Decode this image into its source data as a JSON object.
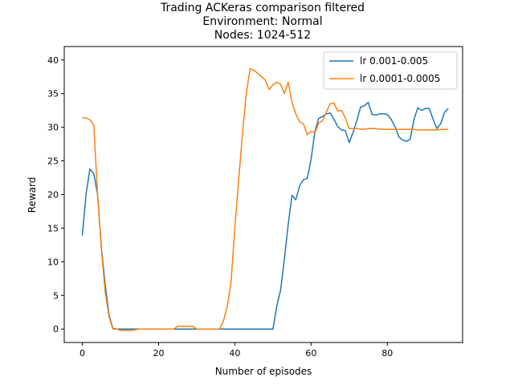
{
  "chart_data": {
    "type": "line",
    "title": [
      "Trading ACKeras comparison filtered",
      "Environment: Normal",
      "Nodes: 1024-512"
    ],
    "xlabel": "Number of episodes",
    "ylabel": "Reward",
    "xlim": [
      -4.75,
      99.75
    ],
    "ylim": [
      -2,
      42
    ],
    "xticks": [
      0,
      20,
      40,
      60,
      80
    ],
    "yticks": [
      0,
      5,
      10,
      15,
      20,
      25,
      30,
      35,
      40
    ],
    "grid": false,
    "legend_position": "top-right",
    "series": [
      {
        "name": "lr 0.001-0.005",
        "color": "#1f77b4",
        "values": [
          13.9,
          20.2,
          23.8,
          23.1,
          20.0,
          12.0,
          6.6,
          2.1,
          0.1,
          0.0,
          0.0,
          0.0,
          0.0,
          0.0,
          0.0,
          0.0,
          0.0,
          0.0,
          0.0,
          0.0,
          0.0,
          0.0,
          0.0,
          0.0,
          0.0,
          0.0,
          0.0,
          0.0,
          0.0,
          0.0,
          0.0,
          0.0,
          0.0,
          0.0,
          0.0,
          0.0,
          0.0,
          0.0,
          0.0,
          0.0,
          0.0,
          0.0,
          0.0,
          0.0,
          0.0,
          0.0,
          0.0,
          0.0,
          0.0,
          0.0,
          0.0,
          3.4,
          5.8,
          10.4,
          15.6,
          19.9,
          19.2,
          21.3,
          22.2,
          22.4,
          25.2,
          29.4,
          31.3,
          31.6,
          32.0,
          32.1,
          31.2,
          30.1,
          29.6,
          29.5,
          27.7,
          29.2,
          31.0,
          33.0,
          33.2,
          33.7,
          31.9,
          31.8,
          32.0,
          32.0,
          31.9,
          31.2,
          30.1,
          28.6,
          28.1,
          27.9,
          28.2,
          31.2,
          32.9,
          32.5,
          32.8,
          32.8,
          31.2,
          29.8,
          30.5,
          32.2,
          32.8
        ]
      },
      {
        "name": "lr 0.0001-0.0005",
        "color": "#ff7f0e",
        "values": [
          31.4,
          31.4,
          31.1,
          30.3,
          20.0,
          11.7,
          5.5,
          1.8,
          0.0,
          0.0,
          -0.2,
          -0.2,
          -0.2,
          -0.2,
          -0.1,
          0.0,
          0.0,
          0.0,
          0.0,
          0.0,
          0.0,
          0.0,
          0.0,
          0.0,
          0.0,
          0.4,
          0.4,
          0.4,
          0.4,
          0.4,
          0.0,
          0.0,
          0.0,
          0.0,
          0.0,
          0.0,
          0.0,
          1.2,
          3.3,
          7.0,
          15.0,
          22.0,
          29.0,
          35.0,
          38.7,
          38.5,
          38.0,
          37.5,
          37.0,
          35.6,
          36.3,
          36.7,
          36.4,
          35.0,
          36.7,
          33.7,
          32.0,
          30.8,
          30.5,
          28.9,
          29.4,
          29.2,
          30.6,
          31.0,
          32.2,
          33.5,
          33.6,
          32.4,
          32.5,
          31.4,
          29.8,
          29.8,
          29.8,
          29.7,
          29.7,
          29.8,
          29.8,
          29.8,
          29.7,
          29.7,
          29.7,
          29.7,
          29.7,
          29.7,
          29.7,
          29.7,
          29.7,
          29.7,
          29.6,
          29.6,
          29.6,
          29.6,
          29.6,
          29.6,
          29.7,
          29.7,
          29.7
        ]
      }
    ]
  }
}
